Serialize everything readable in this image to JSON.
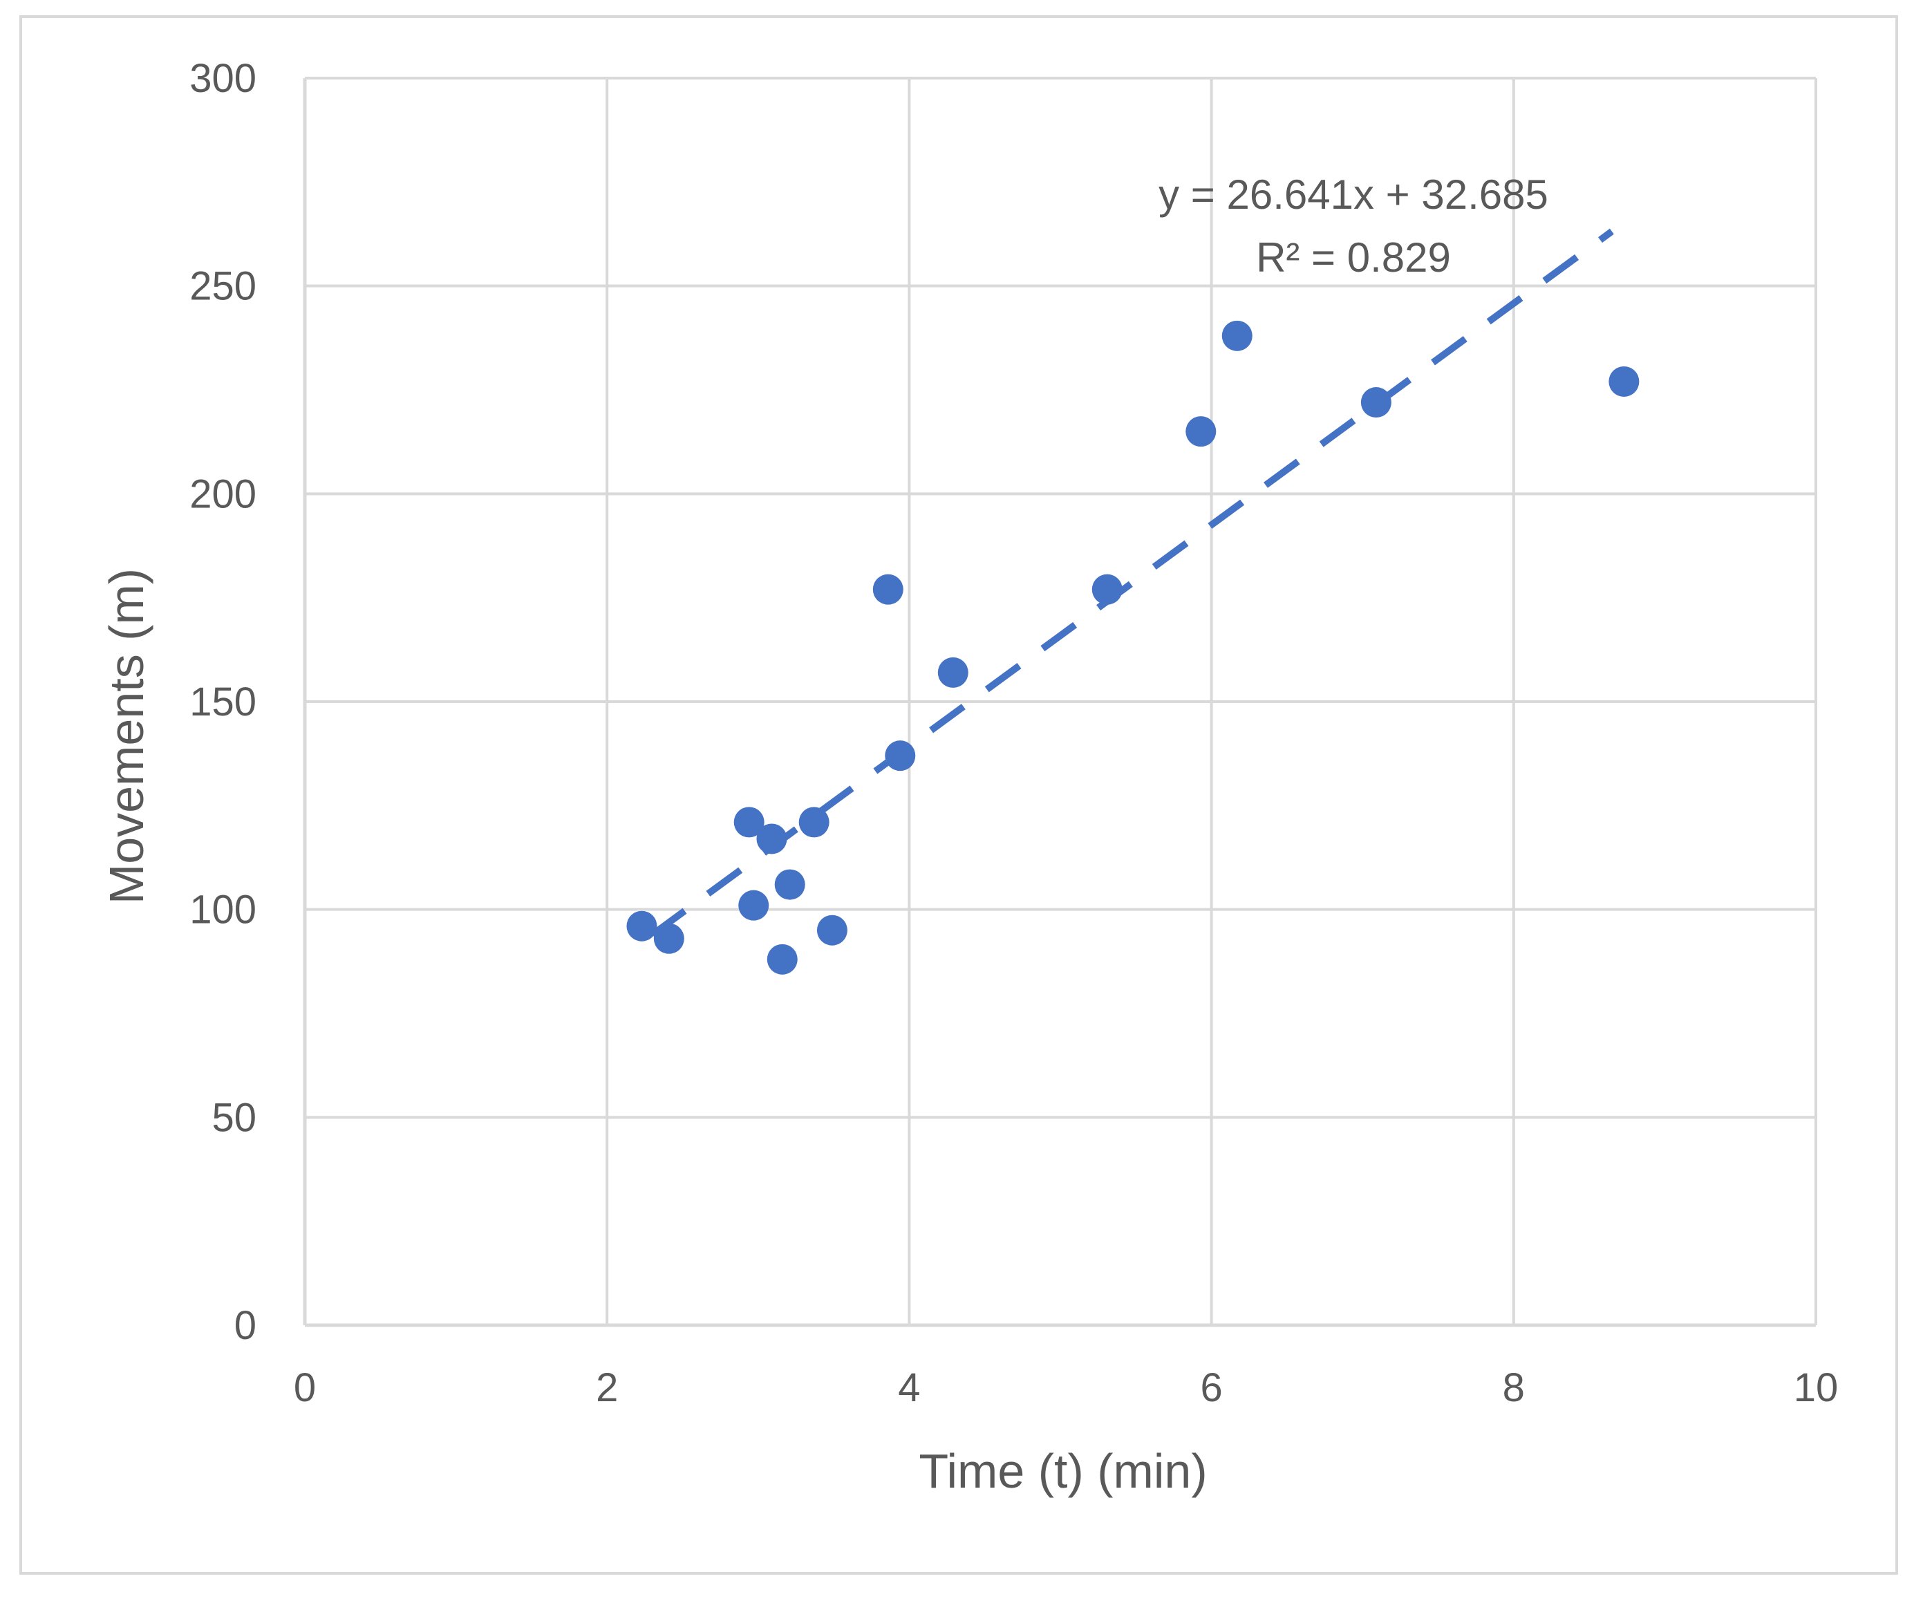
{
  "chart_data": {
    "type": "scatter",
    "title": "",
    "xlabel": "Time (t) (min)",
    "ylabel": "Movements (m)",
    "xlim": [
      0,
      10
    ],
    "ylim": [
      0,
      300
    ],
    "x_ticks": [
      0,
      2,
      4,
      6,
      8,
      10
    ],
    "y_ticks": [
      0,
      50,
      100,
      150,
      200,
      250,
      300
    ],
    "x_tick_labels": [
      "0",
      "2",
      "4",
      "6",
      "8",
      "10"
    ],
    "y_tick_labels": [
      "0",
      "50",
      "100",
      "150",
      "200",
      "250",
      "300"
    ],
    "grid": true,
    "legend": "none",
    "series": [
      {
        "name": "Movements",
        "color": "#4472C4",
        "points": [
          {
            "x": 2.23,
            "y": 96
          },
          {
            "x": 2.41,
            "y": 93
          },
          {
            "x": 2.94,
            "y": 121
          },
          {
            "x": 2.97,
            "y": 101
          },
          {
            "x": 3.09,
            "y": 117
          },
          {
            "x": 3.16,
            "y": 88
          },
          {
            "x": 3.21,
            "y": 106
          },
          {
            "x": 3.37,
            "y": 121
          },
          {
            "x": 3.49,
            "y": 95
          },
          {
            "x": 3.86,
            "y": 177
          },
          {
            "x": 3.94,
            "y": 137
          },
          {
            "x": 4.29,
            "y": 157
          },
          {
            "x": 5.31,
            "y": 177
          },
          {
            "x": 5.93,
            "y": 215
          },
          {
            "x": 6.17,
            "y": 238
          },
          {
            "x": 7.09,
            "y": 222
          },
          {
            "x": 8.73,
            "y": 227
          }
        ]
      }
    ],
    "trendline": {
      "type": "linear",
      "style": "dashed",
      "color": "#4472C4",
      "slope": 26.641,
      "intercept": 32.685,
      "x_range": [
        2.3,
        8.65
      ],
      "equation_label": "y = 26.641x + 32.685",
      "r2_label": "R² = 0.829"
    },
    "colors": {
      "gridline": "#d9d9d9",
      "text": "#595959",
      "frame": "#d9d9d9"
    }
  }
}
